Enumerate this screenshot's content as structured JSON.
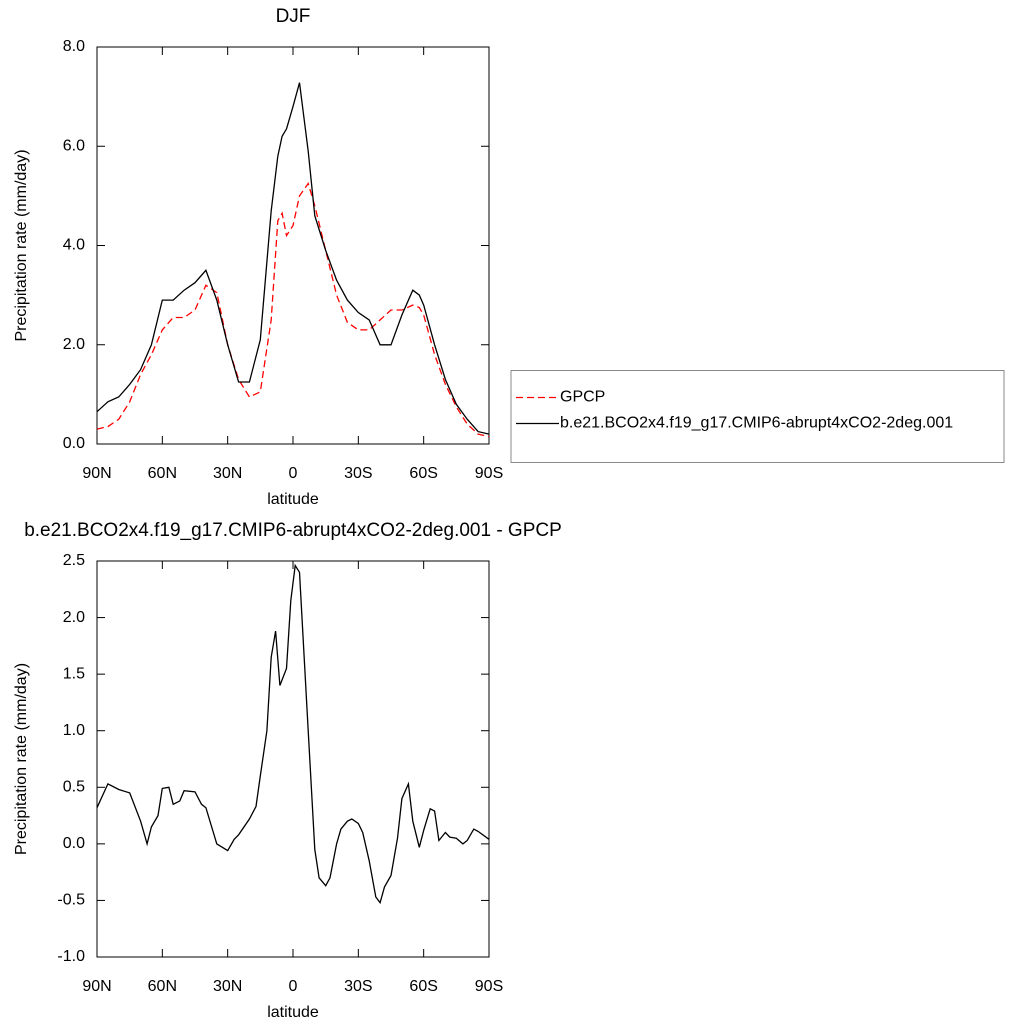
{
  "chart_data": [
    {
      "type": "line",
      "title": "DJF",
      "xlabel": "latitude",
      "ylabel": "Precipitation rate (mm/day)",
      "x": [
        90,
        85,
        80,
        75,
        70,
        65,
        60,
        55,
        50,
        45,
        40,
        35,
        30,
        25,
        20,
        15,
        10,
        7,
        5,
        3,
        0,
        -3,
        -7,
        -10,
        -15,
        -20,
        -25,
        -30,
        -35,
        -40,
        -45,
        -50,
        -55,
        -58,
        -60,
        -65,
        -70,
        -75,
        -80,
        -85,
        -90
      ],
      "series": [
        {
          "name": "GPCP",
          "color": "#ff0000",
          "linestyle": "dashed",
          "values": [
            0.3,
            0.35,
            0.5,
            0.85,
            1.4,
            1.8,
            2.3,
            2.55,
            2.55,
            2.7,
            3.2,
            3.05,
            2.0,
            1.3,
            0.95,
            1.05,
            2.5,
            4.5,
            4.65,
            4.2,
            4.4,
            5.0,
            5.25,
            4.8,
            3.9,
            3.0,
            2.45,
            2.3,
            2.3,
            2.5,
            2.7,
            2.7,
            2.8,
            2.75,
            2.6,
            1.8,
            1.2,
            0.75,
            0.4,
            0.2,
            0.15
          ]
        },
        {
          "name": "b.e21.BCO2x4.f19_g17.CMIP6-abrupt4xCO2-2deg.001",
          "color": "#000000",
          "linestyle": "solid",
          "values": [
            0.65,
            0.85,
            0.95,
            1.2,
            1.5,
            2.0,
            2.9,
            2.9,
            3.1,
            3.25,
            3.5,
            2.9,
            2.0,
            1.25,
            1.25,
            2.1,
            4.7,
            5.8,
            6.2,
            6.35,
            6.8,
            7.28,
            5.9,
            4.6,
            3.9,
            3.3,
            2.9,
            2.65,
            2.5,
            2.0,
            2.0,
            2.6,
            3.1,
            3.0,
            2.8,
            2.0,
            1.3,
            0.8,
            0.5,
            0.25,
            0.2
          ]
        }
      ],
      "xlim": [
        90,
        -90
      ],
      "xticks": [
        {
          "value": 90,
          "label": "90N"
        },
        {
          "value": 60,
          "label": "60N"
        },
        {
          "value": 30,
          "label": "30N"
        },
        0,
        {
          "value": -30,
          "label": "30S"
        },
        {
          "value": -60,
          "label": "60S"
        },
        {
          "value": -90,
          "label": "90S"
        }
      ],
      "ylim": [
        0,
        8
      ],
      "yticks": [
        {
          "value": 0,
          "label": "0.0"
        },
        {
          "value": 2,
          "label": "2.0"
        },
        {
          "value": 4,
          "label": "4.0"
        },
        {
          "value": 6,
          "label": "6.0"
        },
        {
          "value": 8,
          "label": "8.0"
        }
      ],
      "legend": "right"
    },
    {
      "type": "line",
      "title": "b.e21.BCO2x4.f19_g17.CMIP6-abrupt4xCO2-2deg.001 - GPCP",
      "xlabel": "latitude",
      "ylabel": "Precipitation rate (mm/day)",
      "x": [
        90,
        85,
        80,
        75,
        70,
        67,
        65,
        62,
        60,
        57,
        55,
        52,
        50,
        45,
        42,
        40,
        35,
        30,
        27,
        25,
        20,
        17,
        15,
        12,
        10,
        8,
        6,
        3,
        1,
        -1,
        -3,
        -7,
        -10,
        -12,
        -15,
        -17,
        -20,
        -22,
        -25,
        -27,
        -30,
        -32,
        -35,
        -38,
        -40,
        -42,
        -45,
        -48,
        -50,
        -53,
        -55,
        -58,
        -60,
        -63,
        -65,
        -67,
        -70,
        -72,
        -75,
        -78,
        -80,
        -83,
        -85,
        -90
      ],
      "series": [
        {
          "color": "#000000",
          "linestyle": "solid",
          "values": [
            0.32,
            0.53,
            0.48,
            0.45,
            0.2,
            0.0,
            0.15,
            0.25,
            0.49,
            0.5,
            0.35,
            0.38,
            0.47,
            0.46,
            0.35,
            0.32,
            0.0,
            -0.06,
            0.04,
            0.08,
            0.22,
            0.33,
            0.6,
            1.0,
            1.65,
            1.88,
            1.4,
            1.55,
            2.15,
            2.46,
            2.4,
            1.0,
            -0.05,
            -0.3,
            -0.37,
            -0.3,
            0.0,
            0.13,
            0.2,
            0.22,
            0.18,
            0.1,
            -0.15,
            -0.47,
            -0.52,
            -0.38,
            -0.28,
            0.05,
            0.4,
            0.53,
            0.2,
            -0.03,
            0.12,
            0.31,
            0.29,
            0.03,
            0.1,
            0.06,
            0.05,
            0.0,
            0.03,
            0.13,
            0.11,
            0.04
          ]
        }
      ],
      "xlim": [
        90,
        -90
      ],
      "xticks": [
        {
          "value": 90,
          "label": "90N"
        },
        {
          "value": 60,
          "label": "60N"
        },
        {
          "value": 30,
          "label": "30N"
        },
        0,
        {
          "value": -30,
          "label": "30S"
        },
        {
          "value": -60,
          "label": "60S"
        },
        {
          "value": -90,
          "label": "90S"
        }
      ],
      "ylim": [
        -1,
        2.5
      ],
      "yticks": [
        {
          "value": -1,
          "label": "-1.0"
        },
        {
          "value": -0.5,
          "label": "-0.5"
        },
        {
          "value": 0,
          "label": "0.0"
        },
        {
          "value": 0.5,
          "label": "0.5"
        },
        {
          "value": 1,
          "label": "1.0"
        },
        {
          "value": 1.5,
          "label": "1.5"
        },
        {
          "value": 2,
          "label": "2.0"
        },
        {
          "value": 2.5,
          "label": "2.5"
        }
      ]
    }
  ]
}
